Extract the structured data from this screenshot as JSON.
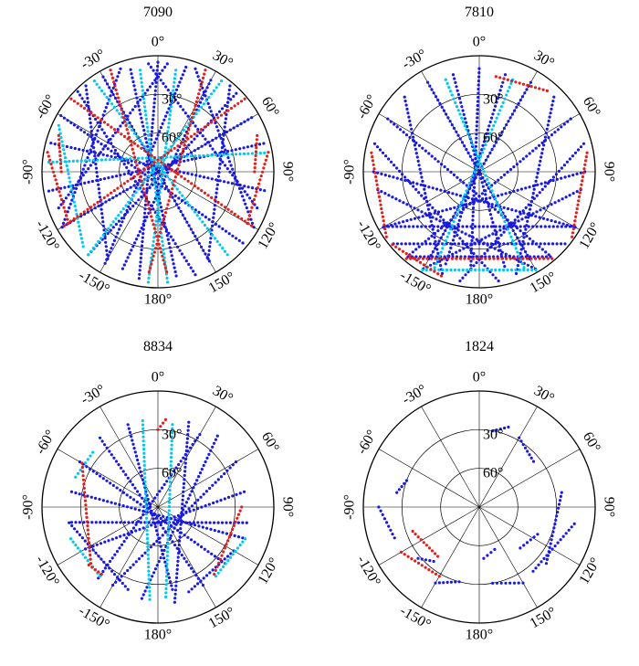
{
  "chart_data": [
    {
      "type": "scatter",
      "projection": "polar",
      "title": "7090",
      "azimuth_labels": [
        "0°",
        "30°",
        "60°",
        "90°",
        "120°",
        "150°",
        "180°",
        "-150°",
        "-120°",
        "-90°",
        "-60°",
        "-30°"
      ],
      "elevation_rings": [
        0,
        30,
        60
      ],
      "elevation_labels": [
        "30°",
        "60°"
      ],
      "series_colors": [
        "#1a1adf",
        "#00c8f0",
        "#e0201a"
      ],
      "tracks": [
        {
          "series": 0,
          "from": [
            -45,
            2
          ],
          "to": [
            160,
            5
          ]
        },
        {
          "series": 0,
          "from": [
            -30,
            5
          ],
          "to": [
            150,
            10
          ]
        },
        {
          "series": 0,
          "from": [
            -15,
            8
          ],
          "to": [
            170,
            8
          ]
        },
        {
          "series": 0,
          "from": [
            0,
            5
          ],
          "to": [
            -170,
            6
          ]
        },
        {
          "series": 0,
          "from": [
            15,
            6
          ],
          "to": [
            -150,
            8
          ]
        },
        {
          "series": 0,
          "from": [
            30,
            8
          ],
          "to": [
            -160,
            10
          ]
        },
        {
          "series": 0,
          "from": [
            45,
            4
          ],
          "to": [
            -140,
            6
          ]
        },
        {
          "series": 0,
          "from": [
            -60,
            3
          ],
          "to": [
            130,
            4
          ]
        },
        {
          "series": 0,
          "from": [
            60,
            6
          ],
          "to": [
            -120,
            5
          ]
        },
        {
          "series": 0,
          "from": [
            -75,
            4
          ],
          "to": [
            100,
            6
          ]
        },
        {
          "series": 0,
          "from": [
            75,
            5
          ],
          "to": [
            -100,
            4
          ]
        },
        {
          "series": 0,
          "from": [
            -40,
            3
          ],
          "to": [
            -150,
            12
          ]
        },
        {
          "series": 0,
          "from": [
            40,
            3
          ],
          "to": [
            150,
            12
          ]
        },
        {
          "series": 0,
          "from": [
            20,
            5
          ],
          "to": [
            120,
            4
          ]
        },
        {
          "series": 0,
          "from": [
            -20,
            5
          ],
          "to": [
            -120,
            4
          ]
        },
        {
          "series": 0,
          "from": [
            -5,
            6
          ],
          "to": [
            110,
            8
          ]
        },
        {
          "series": 0,
          "from": [
            5,
            6
          ],
          "to": [
            -110,
            8
          ]
        },
        {
          "series": 1,
          "from": [
            -35,
            4
          ],
          "to": [
            140,
            6
          ]
        },
        {
          "series": 1,
          "from": [
            35,
            4
          ],
          "to": [
            -140,
            6
          ]
        },
        {
          "series": 1,
          "from": [
            -10,
            10
          ],
          "to": [
            175,
            4
          ]
        },
        {
          "series": 1,
          "from": [
            -85,
            5
          ],
          "to": [
            80,
            6
          ]
        },
        {
          "series": 1,
          "from": [
            10,
            10
          ],
          "to": [
            -175,
            4
          ]
        },
        {
          "series": 1,
          "from": [
            -65,
            5
          ],
          "to": [
            -135,
            8
          ]
        },
        {
          "series": 2,
          "from": [
            -50,
            2
          ],
          "to": [
            120,
            6
          ]
        },
        {
          "series": 2,
          "from": [
            50,
            2
          ],
          "to": [
            -120,
            6
          ]
        },
        {
          "series": 2,
          "from": [
            -25,
            3
          ],
          "to": [
            175,
            12
          ]
        },
        {
          "series": 2,
          "from": [
            25,
            3
          ],
          "to": [
            -175,
            12
          ]
        },
        {
          "series": 2,
          "from": [
            -80,
            3
          ],
          "to": [
            -120,
            10
          ]
        },
        {
          "series": 2,
          "from": [
            80,
            3
          ],
          "to": [
            120,
            10
          ]
        },
        {
          "series": 2,
          "from": [
            -90,
            15
          ],
          "to": [
            -70,
            8
          ]
        },
        {
          "series": 2,
          "from": [
            90,
            15
          ],
          "to": [
            70,
            8
          ]
        }
      ]
    },
    {
      "type": "scatter",
      "projection": "polar",
      "title": "7810",
      "azimuth_labels": [
        "0°",
        "30°",
        "60°",
        "90°",
        "120°",
        "150°",
        "180°",
        "-150°",
        "-120°",
        "-90°",
        "-60°",
        "-30°"
      ],
      "elevation_rings": [
        0,
        30,
        60
      ],
      "elevation_labels": [
        "30°",
        "60°"
      ],
      "series_colors": [
        "#1a1adf",
        "#00c8f0",
        "#e0201a"
      ],
      "tracks": [
        {
          "series": 0,
          "from": [
            -30,
            10
          ],
          "to": [
            150,
            12
          ]
        },
        {
          "series": 0,
          "from": [
            -15,
            12
          ],
          "to": [
            165,
            14
          ]
        },
        {
          "series": 0,
          "from": [
            0,
            10
          ],
          "to": [
            -175,
            14
          ]
        },
        {
          "series": 0,
          "from": [
            15,
            12
          ],
          "to": [
            -160,
            14
          ]
        },
        {
          "series": 0,
          "from": [
            30,
            10
          ],
          "to": [
            -150,
            12
          ]
        },
        {
          "series": 0,
          "from": [
            -60,
            8
          ],
          "to": [
            140,
            6
          ]
        },
        {
          "series": 0,
          "from": [
            60,
            8
          ],
          "to": [
            -140,
            6
          ]
        },
        {
          "series": 0,
          "from": [
            -90,
            8
          ],
          "to": [
            120,
            4
          ]
        },
        {
          "series": 0,
          "from": [
            90,
            8
          ],
          "to": [
            -120,
            4
          ]
        },
        {
          "series": 0,
          "from": [
            -45,
            8
          ],
          "to": [
            -160,
            6
          ]
        },
        {
          "series": 0,
          "from": [
            45,
            8
          ],
          "to": [
            160,
            6
          ]
        },
        {
          "series": 0,
          "from": [
            -75,
            6
          ],
          "to": [
            170,
            4
          ]
        },
        {
          "series": 0,
          "from": [
            75,
            6
          ],
          "to": [
            -170,
            4
          ]
        },
        {
          "series": 0,
          "from": [
            -100,
            10
          ],
          "to": [
            150,
            3
          ]
        },
        {
          "series": 0,
          "from": [
            100,
            10
          ],
          "to": [
            -150,
            3
          ]
        },
        {
          "series": 0,
          "from": [
            -120,
            5
          ],
          "to": [
            120,
            5
          ]
        },
        {
          "series": 0,
          "from": [
            -130,
            3
          ],
          "to": [
            130,
            3
          ]
        },
        {
          "series": 0,
          "from": [
            -140,
            4
          ],
          "to": [
            140,
            4
          ]
        },
        {
          "series": 1,
          "from": [
            -20,
            14
          ],
          "to": [
            155,
            8
          ]
        },
        {
          "series": 1,
          "from": [
            20,
            14
          ],
          "to": [
            -155,
            8
          ]
        },
        {
          "series": 1,
          "from": [
            -150,
            2
          ],
          "to": [
            150,
            2
          ]
        },
        {
          "series": 2,
          "from": [
            -80,
            5
          ],
          "to": [
            -125,
            2
          ]
        },
        {
          "series": 2,
          "from": [
            80,
            5
          ],
          "to": [
            125,
            2
          ]
        },
        {
          "series": 2,
          "from": [
            -140,
            2
          ],
          "to": [
            140,
            2
          ]
        },
        {
          "series": 2,
          "from": [
            10,
            15
          ],
          "to": [
            40,
            8
          ]
        },
        {
          "series": 2,
          "from": [
            -160,
            4
          ],
          "to": [
            -130,
            2
          ]
        }
      ]
    },
    {
      "type": "scatter",
      "projection": "polar",
      "title": "8834",
      "azimuth_labels": [
        "0°",
        "30°",
        "60°",
        "90°",
        "120°",
        "150°",
        "180°",
        "-150°",
        "-120°",
        "-90°",
        "-60°",
        "-30°"
      ],
      "elevation_rings": [
        0,
        30,
        60
      ],
      "elevation_labels": [
        "30°",
        "60°"
      ],
      "series_colors": [
        "#1a1adf",
        "#00c8f0",
        "#e0201a"
      ],
      "tracks": [
        {
          "series": 0,
          "from": [
            20,
            20
          ],
          "to": [
            170,
            15
          ]
        },
        {
          "series": 0,
          "from": [
            40,
            18
          ],
          "to": [
            -170,
            18
          ]
        },
        {
          "series": 0,
          "from": [
            60,
            20
          ],
          "to": [
            -150,
            20
          ]
        },
        {
          "series": 0,
          "from": [
            -40,
            20
          ],
          "to": [
            150,
            20
          ]
        },
        {
          "series": 0,
          "from": [
            -60,
            20
          ],
          "to": [
            130,
            22
          ]
        },
        {
          "series": 0,
          "from": [
            -20,
            22
          ],
          "to": [
            170,
            25
          ]
        },
        {
          "series": 0,
          "from": [
            80,
            22
          ],
          "to": [
            -120,
            25
          ]
        },
        {
          "series": 0,
          "from": [
            -80,
            22
          ],
          "to": [
            110,
            20
          ]
        },
        {
          "series": 0,
          "from": [
            100,
            20
          ],
          "to": [
            -100,
            22
          ]
        },
        {
          "series": 0,
          "from": [
            30,
            25
          ],
          "to": [
            -140,
            18
          ]
        },
        {
          "series": 0,
          "from": [
            -100,
            20
          ],
          "to": [
            -160,
            22
          ]
        },
        {
          "series": 0,
          "from": [
            120,
            22
          ],
          "to": [
            160,
            20
          ]
        },
        {
          "series": 1,
          "from": [
            -10,
            22
          ],
          "to": [
            -175,
            18
          ]
        },
        {
          "series": 1,
          "from": [
            10,
            25
          ],
          "to": [
            175,
            20
          ]
        },
        {
          "series": 1,
          "from": [
            110,
            18
          ],
          "to": [
            140,
            20
          ]
        },
        {
          "series": 1,
          "from": [
            -110,
            18
          ],
          "to": [
            -140,
            20
          ]
        },
        {
          "series": 1,
          "from": [
            -70,
            22
          ],
          "to": [
            -50,
            24
          ]
        },
        {
          "series": 2,
          "from": [
            -60,
            22
          ],
          "to": [
            -130,
            22
          ]
        },
        {
          "series": 2,
          "from": [
            0,
            30
          ],
          "to": [
            5,
            22
          ]
        },
        {
          "series": 2,
          "from": [
            90,
            25
          ],
          "to": [
            140,
            22
          ]
        },
        {
          "series": 2,
          "from": [
            -140,
            22
          ],
          "to": [
            -130,
            20
          ]
        }
      ]
    },
    {
      "type": "scatter",
      "projection": "polar",
      "title": "1824",
      "azimuth_labels": [
        "0°",
        "30°",
        "60°",
        "90°",
        "120°",
        "150°",
        "180°",
        "-150°",
        "-120°",
        "-90°",
        "-60°",
        "-30°"
      ],
      "elevation_rings": [
        0,
        30,
        60
      ],
      "elevation_labels": [
        "30°",
        "60°"
      ],
      "series_colors": [
        "#1a1adf",
        "#00c8f0",
        "#e0201a"
      ],
      "tracks": [
        {
          "series": 0,
          "from": [
            10,
            30
          ],
          "to": [
            20,
            24
          ]
        },
        {
          "series": 0,
          "from": [
            30,
            28
          ],
          "to": [
            50,
            35
          ]
        },
        {
          "series": 0,
          "from": [
            80,
            25
          ],
          "to": [
            130,
            22
          ]
        },
        {
          "series": 0,
          "from": [
            100,
            15
          ],
          "to": [
            140,
            25
          ]
        },
        {
          "series": 0,
          "from": [
            -90,
            12
          ],
          "to": [
            -110,
            20
          ]
        },
        {
          "series": 0,
          "from": [
            -70,
            30
          ],
          "to": [
            -80,
            25
          ]
        },
        {
          "series": 0,
          "from": [
            150,
            22
          ],
          "to": [
            170,
            30
          ]
        },
        {
          "series": 0,
          "from": [
            -150,
            22
          ],
          "to": [
            -165,
            30
          ]
        },
        {
          "series": 0,
          "from": [
            175,
            50
          ],
          "to": [
            160,
            55
          ]
        },
        {
          "series": 0,
          "from": [
            115,
            40
          ],
          "to": [
            135,
            45
          ]
        },
        {
          "series": 0,
          "from": [
            -130,
            28
          ],
          "to": [
            -140,
            35
          ]
        },
        {
          "series": 2,
          "from": [
            -120,
            20
          ],
          "to": [
            -150,
            28
          ]
        },
        {
          "series": 2,
          "from": [
            -110,
            35
          ],
          "to": [
            -140,
            40
          ]
        }
      ]
    }
  ]
}
